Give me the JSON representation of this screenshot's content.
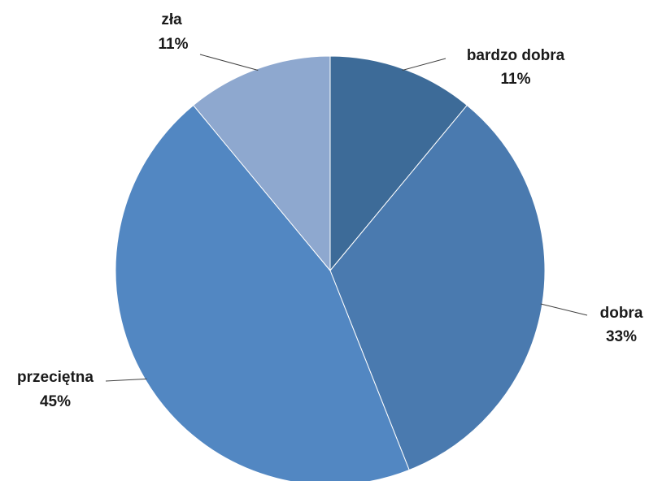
{
  "chart_data": {
    "type": "pie",
    "title": "",
    "start_angle_deg": 0,
    "direction": "clockwise",
    "slices": [
      {
        "name": "bardzo dobra",
        "value": 11,
        "label": "11%",
        "color": "#3d6b98"
      },
      {
        "name": "dobra",
        "value": 33,
        "label": "33%",
        "color": "#4a7aaf"
      },
      {
        "name": "przeciętna",
        "value": 45,
        "label": "45%",
        "color": "#5287c2"
      },
      {
        "name": "zła",
        "value": 11,
        "label": "11%",
        "color": "#8ea8cf"
      }
    ],
    "legend": "none",
    "data_labels": "outside with leader lines"
  }
}
